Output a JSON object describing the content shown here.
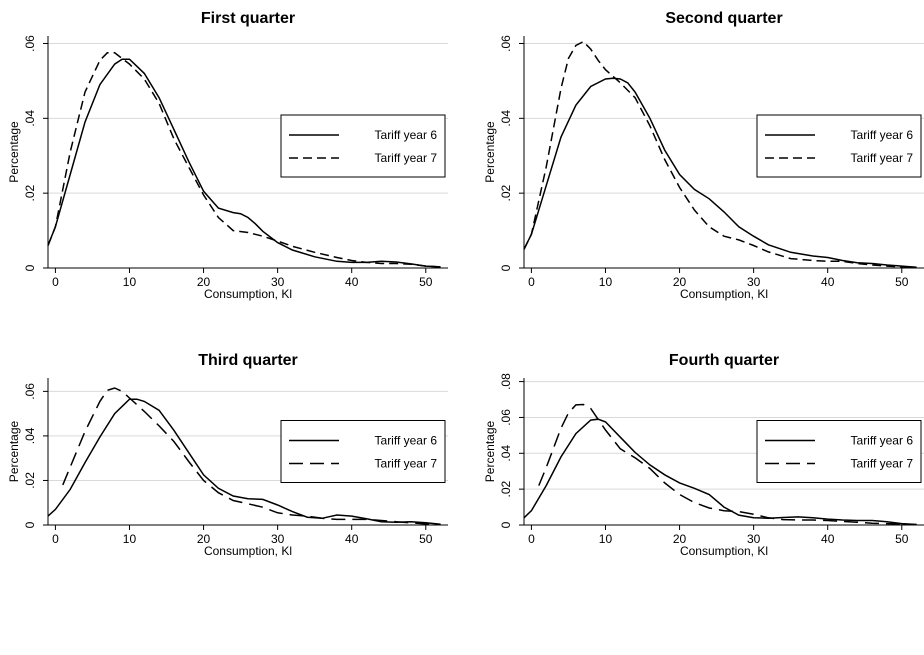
{
  "chart_data": [
    {
      "type": "line",
      "title": "First quarter",
      "xlabel": "Consumption, Kl",
      "ylabel": "Percentage",
      "xlim": [
        -1,
        53
      ],
      "ylim": [
        0,
        0.062
      ],
      "xticks": [
        "0",
        "10",
        "20",
        "30",
        "40",
        "50"
      ],
      "yticks": [
        "0",
        ".02",
        ".04",
        ".06"
      ],
      "legend": "center-right",
      "series": [
        {
          "name": "Tariff year 6",
          "style": "solid",
          "x": [
            -1,
            0,
            2,
            4,
            6,
            8,
            9,
            10,
            12,
            14,
            16,
            18,
            20,
            22,
            24,
            25,
            26,
            27,
            28,
            30,
            32,
            35,
            38,
            40,
            42,
            44,
            46,
            48,
            50,
            52
          ],
          "y": [
            0.006,
            0.011,
            0.025,
            0.039,
            0.049,
            0.0545,
            0.0558,
            0.0558,
            0.052,
            0.0455,
            0.037,
            0.0285,
            0.0205,
            0.016,
            0.0148,
            0.0145,
            0.0135,
            0.0118,
            0.0098,
            0.0068,
            0.0048,
            0.003,
            0.0018,
            0.0015,
            0.0015,
            0.0018,
            0.0016,
            0.0011,
            0.0005,
            0.0003
          ]
        },
        {
          "name": "Tariff year 7",
          "style": "dashed",
          "x": [
            -1,
            0,
            2,
            4,
            6,
            7,
            8,
            9,
            10,
            12,
            14,
            16,
            18,
            20,
            22,
            24,
            26,
            28,
            30,
            32,
            35,
            38,
            40,
            42,
            44,
            46,
            48,
            50,
            52
          ],
          "y": [
            0.006,
            0.011,
            0.031,
            0.047,
            0.0555,
            0.0575,
            0.0575,
            0.056,
            0.0545,
            0.0505,
            0.044,
            0.0345,
            0.027,
            0.0195,
            0.0135,
            0.01,
            0.0095,
            0.0085,
            0.0072,
            0.0058,
            0.0042,
            0.0028,
            0.002,
            0.0015,
            0.0012,
            0.0012,
            0.001,
            0.0005,
            0.0003
          ]
        }
      ]
    },
    {
      "type": "line",
      "title": "Second quarter",
      "xlabel": "Consumption, Kl",
      "ylabel": "Percentage",
      "xlim": [
        -1,
        53
      ],
      "ylim": [
        0,
        0.062
      ],
      "xticks": [
        "0",
        "10",
        "20",
        "30",
        "40",
        "50"
      ],
      "yticks": [
        "0",
        ".02",
        ".04",
        ".06"
      ],
      "legend": "center-right",
      "series": [
        {
          "name": "Tariff year 6",
          "style": "solid",
          "x": [
            -1,
            0,
            2,
            4,
            6,
            8,
            10,
            11,
            12,
            13,
            14,
            16,
            18,
            20,
            22,
            24,
            26,
            28,
            30,
            32,
            35,
            38,
            40,
            42,
            44,
            46,
            48,
            50,
            52
          ],
          "y": [
            0.005,
            0.009,
            0.022,
            0.035,
            0.0435,
            0.0485,
            0.0505,
            0.0507,
            0.0505,
            0.0495,
            0.047,
            0.04,
            0.0315,
            0.025,
            0.021,
            0.0185,
            0.015,
            0.011,
            0.0085,
            0.0062,
            0.0042,
            0.0032,
            0.0028,
            0.002,
            0.0014,
            0.0012,
            0.0008,
            0.0005,
            0.0002
          ]
        },
        {
          "name": "Tariff year 7",
          "style": "dashed",
          "x": [
            -1,
            0,
            2,
            4,
            5,
            6,
            7,
            8,
            9,
            10,
            12,
            14,
            16,
            18,
            20,
            22,
            24,
            26,
            28,
            30,
            32,
            35,
            38,
            40,
            42,
            44,
            46,
            48,
            50,
            52
          ],
          "y": [
            0.005,
            0.009,
            0.027,
            0.048,
            0.056,
            0.0595,
            0.0605,
            0.0585,
            0.0555,
            0.053,
            0.0495,
            0.0455,
            0.038,
            0.029,
            0.0215,
            0.0155,
            0.011,
            0.0085,
            0.0075,
            0.006,
            0.0043,
            0.0025,
            0.002,
            0.0018,
            0.0018,
            0.0012,
            0.0008,
            0.0005,
            0.0003,
            0.0001
          ]
        }
      ]
    },
    {
      "type": "line",
      "title": "Third quarter",
      "xlabel": "Consumption, Kl",
      "ylabel": "Percentage",
      "xlim": [
        -1,
        53
      ],
      "ylim": [
        0,
        0.066
      ],
      "xticks": [
        "0",
        "10",
        "20",
        "30",
        "40",
        "50"
      ],
      "yticks": [
        "0",
        ".02",
        ".04",
        ".06"
      ],
      "legend": "center-right",
      "series": [
        {
          "name": "Tariff year 6",
          "style": "solid",
          "x": [
            -1,
            0,
            2,
            4,
            6,
            8,
            10,
            11,
            12,
            14,
            16,
            18,
            20,
            22,
            24,
            26,
            28,
            30,
            32,
            34,
            36,
            38,
            40,
            42,
            44,
            46,
            48,
            50,
            52
          ],
          "y": [
            0.004,
            0.007,
            0.016,
            0.028,
            0.0395,
            0.05,
            0.0565,
            0.0565,
            0.0555,
            0.0515,
            0.0425,
            0.0325,
            0.0225,
            0.0165,
            0.013,
            0.0118,
            0.0115,
            0.009,
            0.006,
            0.0035,
            0.003,
            0.0045,
            0.004,
            0.0028,
            0.0015,
            0.0012,
            0.0015,
            0.001,
            0.0003
          ]
        },
        {
          "name": "Tariff year 7",
          "style": "longdash",
          "x": [
            1,
            2,
            4,
            6,
            7,
            8,
            9,
            10,
            12,
            14,
            16,
            18,
            20,
            22,
            24,
            26,
            28,
            30,
            32,
            34,
            36,
            38,
            40,
            42,
            44,
            46,
            48,
            50,
            52
          ],
          "y": [
            0.018,
            0.026,
            0.042,
            0.0555,
            0.0605,
            0.0615,
            0.06,
            0.057,
            0.051,
            0.0445,
            0.0375,
            0.0285,
            0.02,
            0.0145,
            0.011,
            0.0095,
            0.008,
            0.0055,
            0.0045,
            0.004,
            0.003,
            0.0025,
            0.0025,
            0.0025,
            0.002,
            0.0015,
            0.001,
            0.0005,
            0.0002
          ]
        }
      ]
    },
    {
      "type": "line",
      "title": "Fourth quarter",
      "xlabel": "Consumption, Kl",
      "ylabel": "Percentage",
      "xlim": [
        -1,
        53
      ],
      "ylim": [
        0,
        0.082
      ],
      "xticks": [
        "0",
        "10",
        "20",
        "30",
        "40",
        "50"
      ],
      "yticks": [
        "0",
        ".02",
        ".04",
        ".06",
        ".08"
      ],
      "legend": "center-right",
      "series": [
        {
          "name": "Tariff year 6",
          "style": "solid",
          "x": [
            -1,
            0,
            2,
            4,
            6,
            8,
            9,
            10,
            12,
            14,
            16,
            18,
            20,
            22,
            24,
            26,
            28,
            30,
            32,
            34,
            36,
            38,
            40,
            42,
            44,
            46,
            48,
            50,
            52
          ],
          "y": [
            0.004,
            0.008,
            0.022,
            0.038,
            0.051,
            0.0585,
            0.059,
            0.0575,
            0.049,
            0.0405,
            0.0335,
            0.028,
            0.0235,
            0.0205,
            0.017,
            0.01,
            0.0055,
            0.004,
            0.0038,
            0.0042,
            0.0045,
            0.004,
            0.0033,
            0.0028,
            0.0025,
            0.0025,
            0.0018,
            0.0008,
            0.0003
          ]
        },
        {
          "name": "Tariff year 7",
          "style": "longdash",
          "x": [
            1,
            2,
            4,
            5,
            6,
            7,
            8,
            10,
            12,
            14,
            16,
            18,
            20,
            22,
            24,
            26,
            28,
            30,
            32,
            34,
            36,
            38,
            40,
            42,
            44,
            46,
            48,
            50,
            52
          ],
          "y": [
            0.022,
            0.032,
            0.054,
            0.0625,
            0.067,
            0.0672,
            0.065,
            0.053,
            0.0425,
            0.0375,
            0.0315,
            0.0235,
            0.017,
            0.0125,
            0.0095,
            0.008,
            0.0075,
            0.006,
            0.004,
            0.003,
            0.0028,
            0.0028,
            0.0025,
            0.002,
            0.0015,
            0.001,
            0.0008,
            0.0005,
            0.0002
          ]
        }
      ]
    }
  ]
}
